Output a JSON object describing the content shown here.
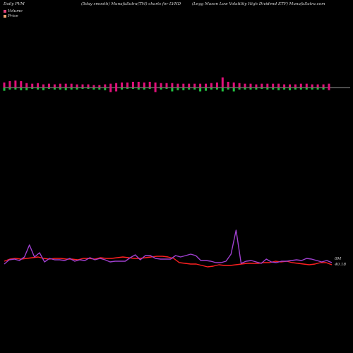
{
  "header": {
    "left": "Daily PVM",
    "center": "(5day smooth) MunafaSutra(TM) charts for LVHD",
    "right": "(Legg Mason  Low  Volatility High Dividend ETF) MunafaSutra.com"
  },
  "legend": [
    {
      "label": "Volume",
      "color": "#e0407a"
    },
    {
      "label": "Price",
      "color": "#f0a070"
    }
  ],
  "colors": {
    "volume_up": "#e0107a",
    "volume_down": "#22c040",
    "price_line": "#ff2020",
    "volume_line": "#a040d0",
    "baseline": "#cccccc"
  },
  "chart_data": {
    "type": "bar",
    "title": "",
    "volume_bars": {
      "values": [
        0.8,
        1.0,
        1.1,
        1.0,
        0.7,
        0.6,
        0.7,
        0.5,
        0.6,
        0.5,
        0.6,
        0.6,
        0.6,
        0.5,
        0.5,
        0.5,
        0.4,
        0.4,
        0.5,
        0.6,
        0.7,
        0.8,
        0.8,
        0.9,
        0.9,
        0.8,
        0.9,
        0.8,
        0.7,
        0.7,
        0.7,
        0.6,
        0.6,
        0.6,
        0.6,
        0.6,
        0.6,
        0.7,
        0.8,
        1.6,
        0.9,
        0.8,
        0.7,
        0.6,
        0.6,
        0.5,
        0.6,
        0.6,
        0.6,
        0.6,
        0.5,
        0.5,
        0.5,
        0.6,
        0.6,
        0.5,
        0.5,
        0.5,
        0.6
      ],
      "down": [
        0.4,
        0.2,
        0.2,
        0.3,
        0.3,
        0.1,
        0.2,
        0.3,
        0.1,
        0.2,
        0.2,
        0.3,
        0.2,
        0.2,
        0.1,
        0.1,
        0.2,
        0.2,
        0.3,
        0.6,
        0.5,
        0.2,
        0.1,
        0.1,
        0.2,
        0.2,
        0.1,
        0.6,
        0.2,
        0.1,
        0.5,
        0.3,
        0.3,
        0.2,
        0.2,
        0.5,
        0.4,
        0.2,
        0.2,
        0.5,
        0.2,
        0.5,
        0.2,
        0.2,
        0.2,
        0.2,
        0.1,
        0.2,
        0.2,
        0.3,
        0.2,
        0.3,
        0.2,
        0.2,
        0.2,
        0.2,
        0.2,
        0.2,
        0.3
      ],
      "down_color": [
        "g",
        "g",
        "g",
        "g",
        "g",
        "g",
        "g",
        "g",
        "g",
        "g",
        "g",
        "g",
        "g",
        "g",
        "g",
        "g",
        "g",
        "g",
        "g",
        "r",
        "r",
        "g",
        "g",
        "g",
        "g",
        "g",
        "g",
        "r",
        "g",
        "g",
        "g",
        "g",
        "g",
        "g",
        "g",
        "g",
        "g",
        "g",
        "g",
        "g",
        "g",
        "g",
        "g",
        "g",
        "g",
        "g",
        "g",
        "g",
        "g",
        "g",
        "g",
        "g",
        "g",
        "g",
        "g",
        "g",
        "g",
        "g",
        "r"
      ]
    },
    "price_series": [
      {
        "values": [
          370,
          367,
          366,
          367,
          366,
          365,
          364,
          366,
          367,
          366,
          366,
          367,
          367,
          368,
          366,
          366,
          367,
          365,
          366,
          366,
          365,
          364,
          365,
          366,
          366,
          365,
          364,
          363,
          363,
          364,
          366,
          372,
          373,
          374,
          374,
          376,
          378,
          377,
          375,
          376,
          376,
          375,
          374,
          373,
          373,
          373,
          372,
          372,
          370,
          371,
          370,
          372,
          373,
          374,
          375,
          374,
          372,
          372,
          375
        ],
        "color": "#ff2020"
      },
      {
        "values": [
          374,
          368,
          367,
          369,
          364,
          347,
          364,
          358,
          371,
          366,
          368,
          368,
          369,
          366,
          370,
          368,
          369,
          365,
          368,
          366,
          368,
          371,
          370,
          370,
          370,
          365,
          361,
          368,
          362,
          362,
          366,
          367,
          367,
          367,
          362,
          364,
          362,
          360,
          362,
          369,
          369,
          370,
          372,
          372,
          370,
          360,
          326,
          373,
          370,
          369,
          371,
          373,
          367,
          371,
          372,
          370,
          370,
          369,
          368,
          369,
          366,
          367,
          369,
          371,
          369,
          372
        ],
        "color": "#a040d0"
      }
    ],
    "labels": {
      "right_top": "0M",
      "right_bottom": "40.18"
    }
  }
}
